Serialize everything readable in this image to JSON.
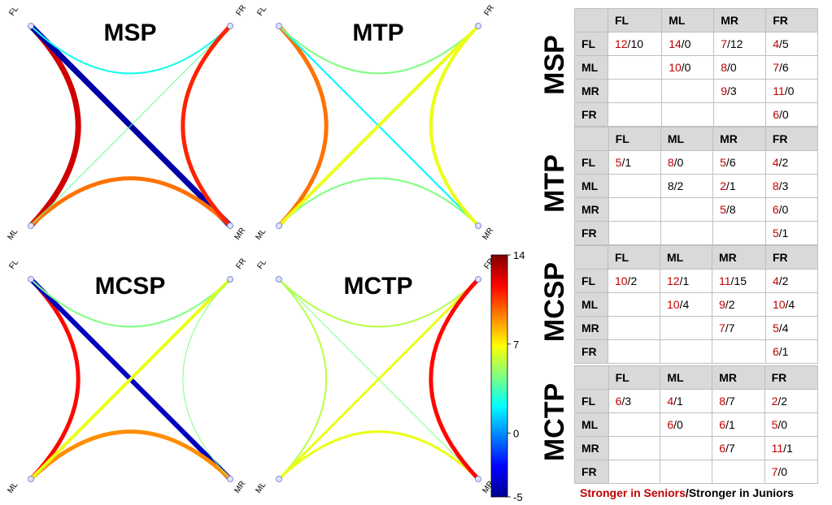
{
  "colormap": {
    "stops": [
      {
        "t": 0.0,
        "color": "#00008f"
      },
      {
        "t": 0.125,
        "color": "#0000ff"
      },
      {
        "t": 0.375,
        "color": "#00ffff"
      },
      {
        "t": 0.625,
        "color": "#ffff00"
      },
      {
        "t": 0.875,
        "color": "#ff0000"
      },
      {
        "t": 1.0,
        "color": "#800000"
      }
    ],
    "min": -5,
    "max": 14,
    "tick_labels": [
      "14",
      "7",
      "0",
      "-5"
    ],
    "tick_values": [
      14,
      7,
      0,
      -5
    ]
  },
  "corner_labels": {
    "fl": "FL",
    "fr": "FR",
    "ml": "ML",
    "mr": "MR"
  },
  "panels": [
    {
      "title": "MSP",
      "edges": [
        {
          "pair": "FL-ML",
          "value": 12.5,
          "width": 7
        },
        {
          "pair": "FL-MR",
          "value": -4.5,
          "width": 7
        },
        {
          "pair": "FL-FR",
          "value": 2.5,
          "width": 2
        },
        {
          "pair": "ML-MR",
          "value": 9.5,
          "width": 5
        },
        {
          "pair": "ML-FR",
          "value": 4,
          "width": 1
        },
        {
          "pair": "FR-MR",
          "value": 11,
          "width": 5
        }
      ]
    },
    {
      "title": "MTP",
      "edges": [
        {
          "pair": "FL-ML",
          "value": 9.5,
          "width": 5
        },
        {
          "pair": "FL-MR",
          "value": 2,
          "width": 2
        },
        {
          "pair": "FL-FR",
          "value": 4.5,
          "width": 2
        },
        {
          "pair": "ML-MR",
          "value": 4.5,
          "width": 2
        },
        {
          "pair": "ML-FR",
          "value": 6.5,
          "width": 4
        },
        {
          "pair": "FR-MR",
          "value": 6.5,
          "width": 4
        }
      ]
    },
    {
      "title": "MCSP",
      "edges": [
        {
          "pair": "FL-ML",
          "value": 11.5,
          "width": 5
        },
        {
          "pair": "FL-MR",
          "value": -4,
          "width": 6
        },
        {
          "pair": "FL-FR",
          "value": 4.5,
          "width": 2
        },
        {
          "pair": "ML-MR",
          "value": 9,
          "width": 5
        },
        {
          "pair": "ML-FR",
          "value": 6.5,
          "width": 4
        },
        {
          "pair": "FR-MR",
          "value": 4.5,
          "width": 1
        }
      ]
    },
    {
      "title": "MCTP",
      "edges": [
        {
          "pair": "FL-ML",
          "value": 5.5,
          "width": 2
        },
        {
          "pair": "FL-MR",
          "value": 4.5,
          "width": 1
        },
        {
          "pair": "FL-FR",
          "value": 5.5,
          "width": 2
        },
        {
          "pair": "ML-MR",
          "value": 6.5,
          "width": 3
        },
        {
          "pair": "ML-FR",
          "value": 6.5,
          "width": 3
        },
        {
          "pair": "FR-MR",
          "value": 11.5,
          "width": 5
        }
      ]
    }
  ],
  "tables": [
    {
      "label": "MSP",
      "columns": [
        "FL",
        "ML",
        "MR",
        "FR"
      ],
      "rows": [
        {
          "head": "FL",
          "cells": [
            [
              "12",
              "10"
            ],
            [
              "14",
              "0"
            ],
            [
              "7",
              "12"
            ],
            [
              "4",
              "5"
            ]
          ]
        },
        {
          "head": "ML",
          "cells": [
            null,
            [
              "10",
              "0"
            ],
            [
              "8",
              "0"
            ],
            [
              "7",
              "6"
            ]
          ]
        },
        {
          "head": "MR",
          "cells": [
            null,
            null,
            [
              "9",
              "3"
            ],
            [
              "11",
              "0"
            ]
          ]
        },
        {
          "head": "FR",
          "cells": [
            null,
            null,
            null,
            [
              "6",
              "0"
            ]
          ]
        }
      ]
    },
    {
      "label": "MTP",
      "columns": [
        "FL",
        "ML",
        "MR",
        "FR"
      ],
      "rows": [
        {
          "head": "FL",
          "cells": [
            [
              "5",
              "1"
            ],
            [
              "8",
              "0"
            ],
            [
              "5",
              "6"
            ],
            [
              "4",
              "2"
            ]
          ]
        },
        {
          "head": "ML",
          "cells": [
            null,
            [
              "8",
              "2",
              "plain"
            ],
            [
              "2",
              "1"
            ],
            [
              "8",
              "3"
            ]
          ]
        },
        {
          "head": "MR",
          "cells": [
            null,
            null,
            [
              "5",
              "8"
            ],
            [
              "6",
              "0"
            ]
          ]
        },
        {
          "head": "FR",
          "cells": [
            null,
            null,
            null,
            [
              "5",
              "1"
            ]
          ]
        }
      ]
    },
    {
      "label": "MCSP",
      "columns": [
        "FL",
        "ML",
        "MR",
        "FR"
      ],
      "rows": [
        {
          "head": "FL",
          "cells": [
            [
              "10",
              "2"
            ],
            [
              "12",
              "1"
            ],
            [
              "11",
              "15"
            ],
            [
              "4",
              "2"
            ]
          ]
        },
        {
          "head": "ML",
          "cells": [
            null,
            [
              "10",
              "4"
            ],
            [
              "9",
              "2"
            ],
            [
              "10",
              "4"
            ]
          ]
        },
        {
          "head": "MR",
          "cells": [
            null,
            null,
            [
              "7",
              "7"
            ],
            [
              "5",
              "4"
            ]
          ]
        },
        {
          "head": "FR",
          "cells": [
            null,
            null,
            null,
            [
              "6",
              "1"
            ]
          ]
        }
      ]
    },
    {
      "label": "MCTP",
      "columns": [
        "FL",
        "ML",
        "MR",
        "FR"
      ],
      "rows": [
        {
          "head": "FL",
          "cells": [
            [
              "6",
              "3"
            ],
            [
              "4",
              "1"
            ],
            [
              "8",
              "7"
            ],
            [
              "2",
              "2"
            ]
          ]
        },
        {
          "head": "ML",
          "cells": [
            null,
            [
              "6",
              "0"
            ],
            [
              "6",
              "1"
            ],
            [
              "5",
              "0"
            ]
          ]
        },
        {
          "head": "MR",
          "cells": [
            null,
            null,
            [
              "6",
              "7"
            ],
            [
              "11",
              "1"
            ]
          ]
        },
        {
          "head": "FR",
          "cells": [
            null,
            null,
            null,
            [
              "7",
              "0"
            ]
          ]
        }
      ]
    }
  ],
  "legend": {
    "seniors": "Stronger in Seniors",
    "separator": "/",
    "juniors": "Stronger in Juniors"
  }
}
